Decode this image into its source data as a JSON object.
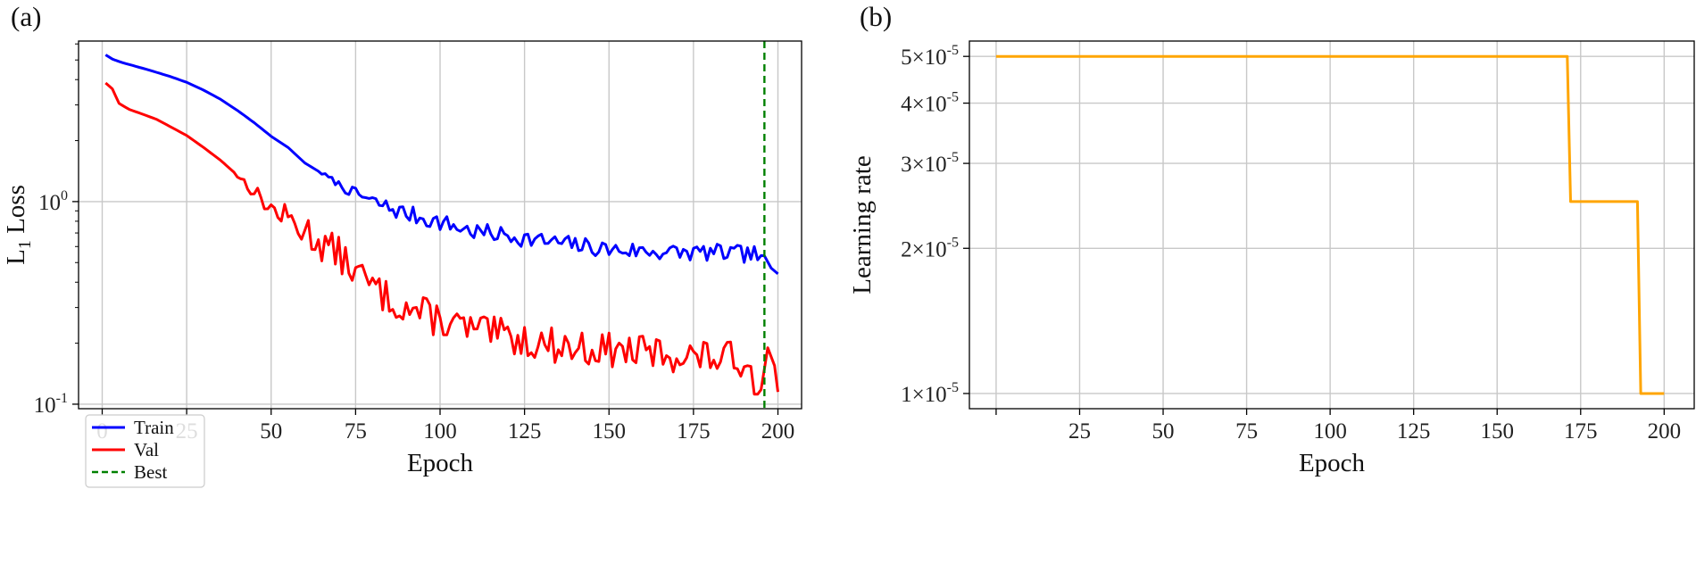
{
  "chart_data": [
    {
      "panel_label": "(a)",
      "type": "line",
      "title": "",
      "xlabel": "Epoch",
      "ylabel": {
        "base": "L",
        "sub": "1",
        "rest": " Loss"
      },
      "yscale": "log",
      "xlim": [
        -7,
        207
      ],
      "ylim": [
        0.095,
        6.2
      ],
      "grid": true,
      "legend_position": "lower-left",
      "x_ticks": [
        0,
        25,
        50,
        75,
        100,
        125,
        150,
        175,
        200
      ],
      "y_ticks": [
        {
          "value": 1,
          "base": "10",
          "exp": "0"
        },
        {
          "value": 0.1,
          "base": "10",
          "exp": "-1"
        }
      ],
      "series": [
        {
          "name": "Train",
          "color": "#0000ff",
          "anchors": [
            [
              1,
              5.3
            ],
            [
              3,
              5.05
            ],
            [
              6,
              4.85
            ],
            [
              10,
              4.65
            ],
            [
              15,
              4.4
            ],
            [
              20,
              4.15
            ],
            [
              25,
              3.88
            ],
            [
              30,
              3.55
            ],
            [
              35,
              3.2
            ],
            [
              40,
              2.82
            ],
            [
              45,
              2.45
            ],
            [
              50,
              2.1
            ],
            [
              55,
              1.85
            ],
            [
              60,
              1.55
            ],
            [
              65,
              1.38
            ],
            [
              70,
              1.22
            ],
            [
              72,
              1.15
            ],
            [
              75,
              1.1
            ],
            [
              80,
              1.0
            ],
            [
              85,
              0.93
            ],
            [
              90,
              0.87
            ],
            [
              100,
              0.79
            ],
            [
              110,
              0.71
            ],
            [
              120,
              0.68
            ],
            [
              130,
              0.64
            ],
            [
              140,
              0.61
            ],
            [
              150,
              0.58
            ],
            [
              160,
              0.57
            ],
            [
              170,
              0.56
            ],
            [
              180,
              0.56
            ],
            [
              190,
              0.55
            ],
            [
              196,
              0.54
            ],
            [
              198,
              0.47
            ],
            [
              200,
              0.44
            ]
          ],
          "noise_from": 65,
          "noise_amp": 0.1,
          "seed": 7
        },
        {
          "name": "Val",
          "color": "#ff0000",
          "anchors": [
            [
              1,
              3.85
            ],
            [
              3,
              3.6
            ],
            [
              5,
              3.05
            ],
            [
              8,
              2.85
            ],
            [
              12,
              2.7
            ],
            [
              16,
              2.55
            ],
            [
              20,
              2.35
            ],
            [
              25,
              2.12
            ],
            [
              30,
              1.85
            ],
            [
              35,
              1.6
            ],
            [
              40,
              1.35
            ],
            [
              45,
              1.12
            ],
            [
              50,
              0.92
            ],
            [
              55,
              0.82
            ],
            [
              60,
              0.72
            ],
            [
              65,
              0.62
            ],
            [
              70,
              0.55
            ],
            [
              75,
              0.45
            ],
            [
              80,
              0.38
            ],
            [
              85,
              0.33
            ],
            [
              90,
              0.3
            ],
            [
              100,
              0.26
            ],
            [
              110,
              0.23
            ],
            [
              120,
              0.215
            ],
            [
              130,
              0.2
            ],
            [
              140,
              0.19
            ],
            [
              150,
              0.185
            ],
            [
              160,
              0.18
            ],
            [
              170,
              0.175
            ],
            [
              180,
              0.17
            ],
            [
              190,
              0.165
            ],
            [
              195,
              0.118
            ],
            [
              197,
              0.19
            ],
            [
              199,
              0.155
            ],
            [
              200,
              0.115
            ]
          ],
          "noise_from": 40,
          "noise_amp": 0.2,
          "seed": 13
        },
        {
          "name": "Best",
          "color": "#008000",
          "style": "dashed",
          "vline": 196
        }
      ]
    },
    {
      "panel_label": "(b)",
      "type": "line",
      "title": "",
      "xlabel": "Epoch",
      "ylabel": {
        "base": "Learning rate",
        "sub": "",
        "rest": ""
      },
      "yscale": "log",
      "xlim": [
        -8,
        209
      ],
      "ylim": [
        9.3e-06,
        5.38e-05
      ],
      "grid": true,
      "x_ticks": [
        0,
        25,
        50,
        75,
        100,
        125,
        150,
        175,
        200
      ],
      "x_tick_labels": [
        "",
        "25",
        "50",
        "75",
        "100",
        "125",
        "150",
        "175",
        "200"
      ],
      "y_ticks": [
        {
          "value": 5e-05,
          "mant": "5",
          "times": "×",
          "base": "10",
          "exp": "-5"
        },
        {
          "value": 4e-05,
          "mant": "4",
          "times": "×",
          "base": "10",
          "exp": "-5"
        },
        {
          "value": 3e-05,
          "mant": "3",
          "times": "×",
          "base": "10",
          "exp": "-5"
        },
        {
          "value": 2e-05,
          "mant": "2",
          "times": "×",
          "base": "10",
          "exp": "-5"
        },
        {
          "value": 1e-05,
          "mant": "1",
          "times": "×",
          "base": "10",
          "exp": "-5"
        }
      ],
      "series": [
        {
          "name": "learning rate",
          "color": "#ffa500",
          "points": [
            [
              0,
              5e-05
            ],
            [
              171,
              5e-05
            ],
            [
              172,
              2.5e-05
            ],
            [
              192,
              2.5e-05
            ],
            [
              193,
              1e-05
            ],
            [
              200,
              1e-05
            ]
          ]
        }
      ]
    }
  ]
}
